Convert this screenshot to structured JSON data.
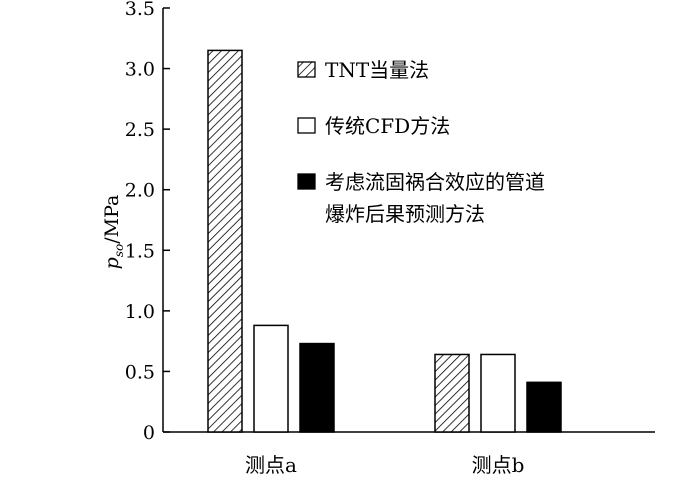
{
  "chart_data": {
    "type": "bar",
    "categories": [
      "测点a",
      "测点b"
    ],
    "series": [
      {
        "name": "TNT当量法",
        "values": [
          3.15,
          0.64
        ],
        "fill": "hatch"
      },
      {
        "name": "传统CFD方法",
        "values": [
          0.88,
          0.64
        ],
        "fill": "#ffffff"
      },
      {
        "name": "考虑流固祸合效应的管道爆炸后果预测方法",
        "name_lines": [
          "考虑流固祸合效应的管道",
          "爆炸后果预测方法"
        ],
        "values": [
          0.73,
          0.41
        ],
        "fill": "#000000"
      }
    ],
    "ylim": [
      0,
      3.5
    ],
    "yticks": [
      0,
      0.5,
      1.0,
      1.5,
      2.0,
      2.5,
      3.0,
      3.5
    ],
    "ytick_labels": [
      "0",
      "0.5",
      "1.0",
      "1.5",
      "2.0",
      "2.5",
      "3.0",
      "3.5"
    ],
    "ylabel": {
      "symbol": "p",
      "subscript": "so",
      "unit": "/MPa"
    },
    "xlabel": "",
    "title": "",
    "grid": false,
    "legend_position": "top-right"
  }
}
